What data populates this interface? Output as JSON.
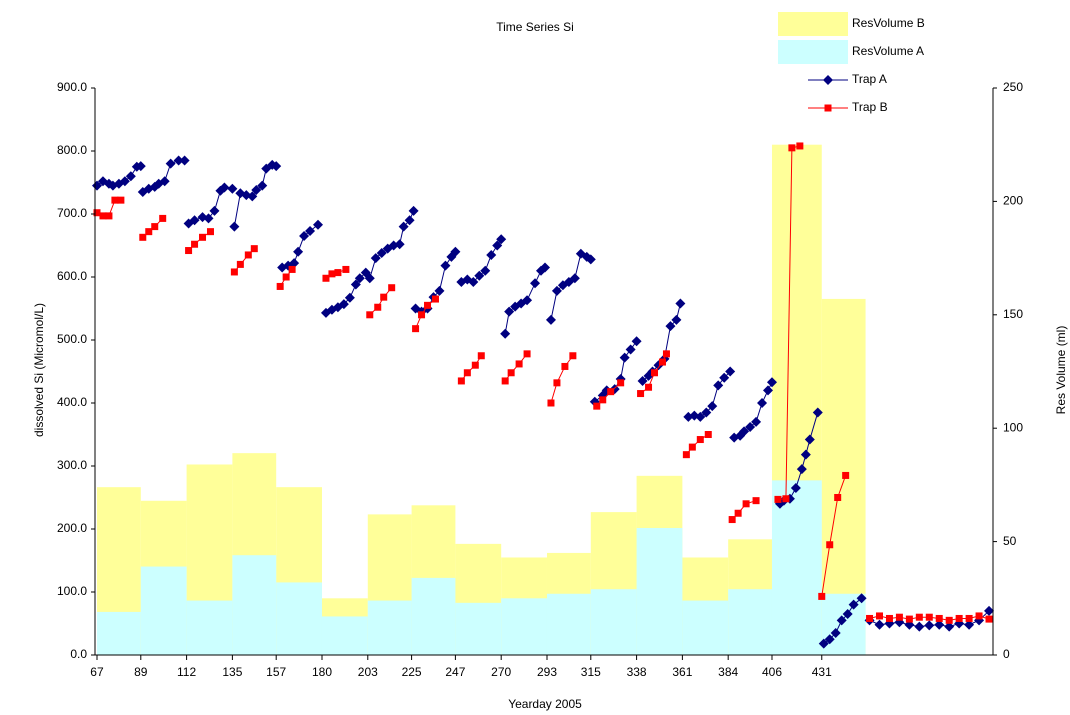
{
  "chart_data": {
    "type": "combo",
    "title": "Time Series Si",
    "x_label": "Yearday 2005",
    "y_label": "dissolved Si (Micromol/L)",
    "y2_label": "Res Volume (ml)",
    "xlim": [
      66,
      517
    ],
    "xticks": [
      67,
      89,
      112,
      135,
      157,
      180,
      203,
      225,
      247,
      270,
      293,
      315,
      338,
      361,
      384,
      406,
      431
    ],
    "ylim": [
      0,
      900
    ],
    "yticks": [
      {
        "value": 0,
        "label": "0.0"
      },
      {
        "value": 100,
        "label": "100.0"
      },
      {
        "value": 200,
        "label": "200.0"
      },
      {
        "value": 300,
        "label": "300.0"
      },
      {
        "value": 400,
        "label": "400.0"
      },
      {
        "value": 500,
        "label": "500.0"
      },
      {
        "value": 600,
        "label": "600.0"
      },
      {
        "value": 700,
        "label": "700.0"
      },
      {
        "value": 800,
        "label": "800.0"
      },
      {
        "value": 900,
        "label": "900.0"
      }
    ],
    "y2lim": [
      0,
      250
    ],
    "y2ticks": [
      0,
      50,
      100,
      150,
      200,
      250
    ],
    "legend": "top-right",
    "series": [
      {
        "name": "ResVolume B",
        "type": "area",
        "axis": "y2",
        "color": "#ffff99",
        "bins": [
          67,
          89,
          112,
          135,
          157,
          180,
          203,
          225,
          247,
          270,
          293,
          315,
          338,
          361,
          384,
          406,
          431,
          453
        ],
        "values": [
          74,
          68,
          84,
          89,
          74,
          25,
          62,
          66,
          49,
          43,
          45,
          63,
          79,
          43,
          51,
          225,
          157
        ]
      },
      {
        "name": "ResVolume A",
        "type": "area",
        "axis": "y2",
        "color": "#ccffff",
        "bins": [
          67,
          89,
          112,
          135,
          157,
          180,
          203,
          225,
          247,
          270,
          293,
          315,
          338,
          361,
          384,
          406,
          431,
          453
        ],
        "values": [
          19,
          39,
          24,
          44,
          32,
          17,
          24,
          34,
          23,
          25,
          27,
          29,
          56,
          24,
          29,
          77,
          27
        ]
      },
      {
        "name": "Trap A",
        "type": "line",
        "marker": "diamond",
        "color": "#000080",
        "x": [
          67,
          70,
          73,
          75,
          78,
          81,
          84,
          87,
          89,
          null,
          90,
          93,
          96,
          98,
          101,
          104,
          108,
          111,
          null,
          113,
          116,
          120,
          123,
          126,
          129,
          131,
          135,
          null,
          136,
          139,
          142,
          145,
          147,
          150,
          152,
          155,
          157,
          null,
          160,
          163,
          166,
          168,
          171,
          174,
          178,
          null,
          182,
          185,
          188,
          191,
          194,
          197,
          199,
          202,
          null,
          204,
          207,
          210,
          213,
          216,
          219,
          221,
          224,
          226,
          null,
          227,
          230,
          233,
          236,
          239,
          242,
          245,
          247,
          null,
          250,
          253,
          256,
          259,
          262,
          265,
          268,
          270,
          null,
          272,
          274,
          277,
          280,
          283,
          287,
          290,
          292,
          null,
          295,
          298,
          301,
          304,
          307,
          310,
          313,
          315,
          null,
          317,
          321,
          323,
          327,
          330,
          332,
          335,
          338,
          null,
          341,
          344,
          346,
          349,
          352,
          355,
          358,
          360,
          null,
          364,
          367,
          370,
          373,
          376,
          379,
          382,
          385,
          null,
          387,
          390,
          392,
          395,
          398,
          401,
          404,
          406,
          null,
          410,
          412,
          415,
          418,
          421,
          423,
          425,
          429,
          null,
          432,
          435,
          438,
          441,
          444,
          447,
          451,
          null,
          455,
          460,
          465,
          470,
          475,
          480,
          485,
          490,
          495,
          500,
          505,
          510,
          515
        ],
        "values": [
          745,
          752,
          748,
          745,
          748,
          752,
          760,
          775,
          776,
          null,
          735,
          740,
          743,
          748,
          752,
          780,
          785,
          785,
          null,
          685,
          690,
          695,
          693,
          705,
          737,
          742,
          740,
          null,
          680,
          733,
          730,
          728,
          738,
          745,
          772,
          778,
          776,
          null,
          615,
          618,
          622,
          640,
          665,
          673,
          683,
          null,
          543,
          548,
          552,
          557,
          567,
          588,
          598,
          607,
          null,
          598,
          630,
          638,
          645,
          650,
          652,
          680,
          690,
          705,
          null,
          550,
          545,
          550,
          568,
          578,
          618,
          632,
          640,
          null,
          592,
          596,
          592,
          602,
          610,
          635,
          650,
          660,
          null,
          510,
          545,
          553,
          558,
          563,
          590,
          610,
          615,
          null,
          532,
          578,
          587,
          592,
          598,
          637,
          632,
          628,
          null,
          402,
          412,
          420,
          422,
          438,
          472,
          485,
          498,
          null,
          435,
          443,
          450,
          460,
          470,
          522,
          532,
          558,
          null,
          378,
          380,
          378,
          385,
          395,
          428,
          440,
          450,
          null,
          345,
          348,
          355,
          362,
          370,
          400,
          420,
          433,
          null,
          240,
          245,
          248,
          265,
          295,
          318,
          342,
          385,
          null,
          18,
          25,
          35,
          55,
          65,
          80,
          90,
          null,
          55,
          48,
          50,
          52,
          48,
          45,
          47,
          48,
          45,
          50,
          48,
          55,
          70
        ]
      },
      {
        "name": "Trap B",
        "type": "line",
        "marker": "square",
        "color": "#ff0000",
        "x": [
          67,
          70,
          73,
          76,
          79,
          null,
          90,
          93,
          96,
          100,
          null,
          113,
          116,
          120,
          124,
          null,
          136,
          139,
          143,
          146,
          null,
          159,
          162,
          165,
          null,
          182,
          185,
          188,
          192,
          null,
          204,
          208,
          211,
          215,
          null,
          227,
          230,
          233,
          237,
          null,
          250,
          253,
          257,
          260,
          null,
          272,
          275,
          279,
          283,
          null,
          295,
          298,
          302,
          306,
          null,
          318,
          321,
          325,
          330,
          null,
          340,
          344,
          347,
          351,
          353,
          null,
          363,
          366,
          370,
          374,
          null,
          386,
          389,
          393,
          398,
          null,
          409,
          413,
          416,
          420,
          null,
          431,
          435,
          439,
          443,
          null,
          455,
          460,
          465,
          470,
          475,
          480,
          485,
          490,
          495,
          500,
          505,
          510,
          515
        ],
        "values": [
          702,
          697,
          697,
          722,
          722,
          null,
          663,
          672,
          680,
          693,
          null,
          642,
          652,
          663,
          672,
          null,
          608,
          620,
          635,
          645,
          null,
          585,
          600,
          612,
          null,
          598,
          605,
          607,
          612,
          null,
          540,
          552,
          568,
          583,
          null,
          518,
          540,
          555,
          565,
          null,
          435,
          448,
          460,
          475,
          null,
          435,
          448,
          462,
          478,
          null,
          400,
          432,
          458,
          475,
          null,
          395,
          405,
          418,
          432,
          null,
          415,
          425,
          448,
          465,
          478,
          null,
          318,
          330,
          342,
          350,
          null,
          215,
          225,
          240,
          245,
          null,
          247,
          248,
          805,
          808,
          null,
          93,
          175,
          250,
          285,
          null,
          58,
          62,
          58,
          60,
          57,
          60,
          60,
          58,
          55,
          58,
          58,
          62,
          57
        ]
      }
    ]
  }
}
